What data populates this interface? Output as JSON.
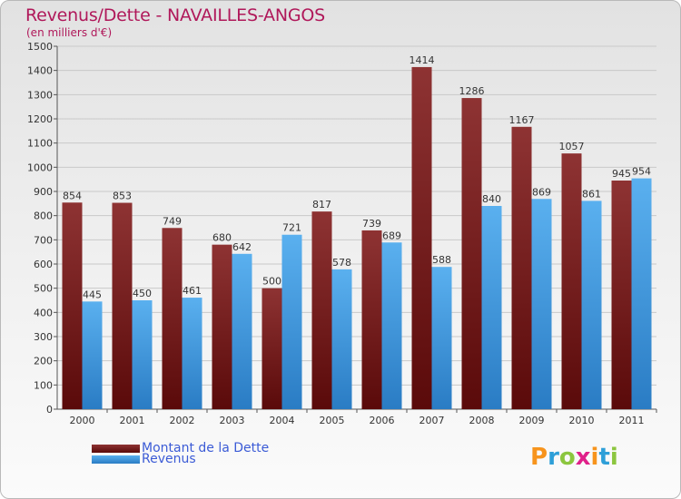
{
  "header": {
    "title": "Revenus/Dette - NAVAILLES-ANGOS",
    "subtitle": "(en milliers d'€)"
  },
  "logo": {
    "text": "Proxiti",
    "colors": [
      "#f7941d",
      "#2e9fd8",
      "#8cc63f",
      "#e0218a",
      "#f7941d",
      "#2e9fd8",
      "#8cc63f"
    ]
  },
  "colors": {
    "dette": "#7a1f1f",
    "revenus": "#3e9be0",
    "title": "#b0185a",
    "legend_text": "#3b5bd6"
  },
  "chart_data": {
    "type": "bar",
    "categories": [
      "2000",
      "2001",
      "2002",
      "2003",
      "2004",
      "2005",
      "2006",
      "2007",
      "2008",
      "2009",
      "2010",
      "2011"
    ],
    "series": [
      {
        "name": "Montant de la Dette",
        "values": [
          854,
          853,
          749,
          680,
          500,
          817,
          739,
          1414,
          1286,
          1167,
          1057,
          945
        ]
      },
      {
        "name": "Revenus",
        "values": [
          445,
          450,
          461,
          642,
          721,
          578,
          689,
          588,
          840,
          869,
          861,
          954
        ]
      }
    ],
    "ylim": [
      0,
      1500
    ],
    "yticks": [
      0,
      100,
      200,
      300,
      400,
      500,
      600,
      700,
      800,
      900,
      1000,
      1100,
      1200,
      1300,
      1400,
      1500
    ],
    "grid": true,
    "legend_position": "bottom-left"
  }
}
